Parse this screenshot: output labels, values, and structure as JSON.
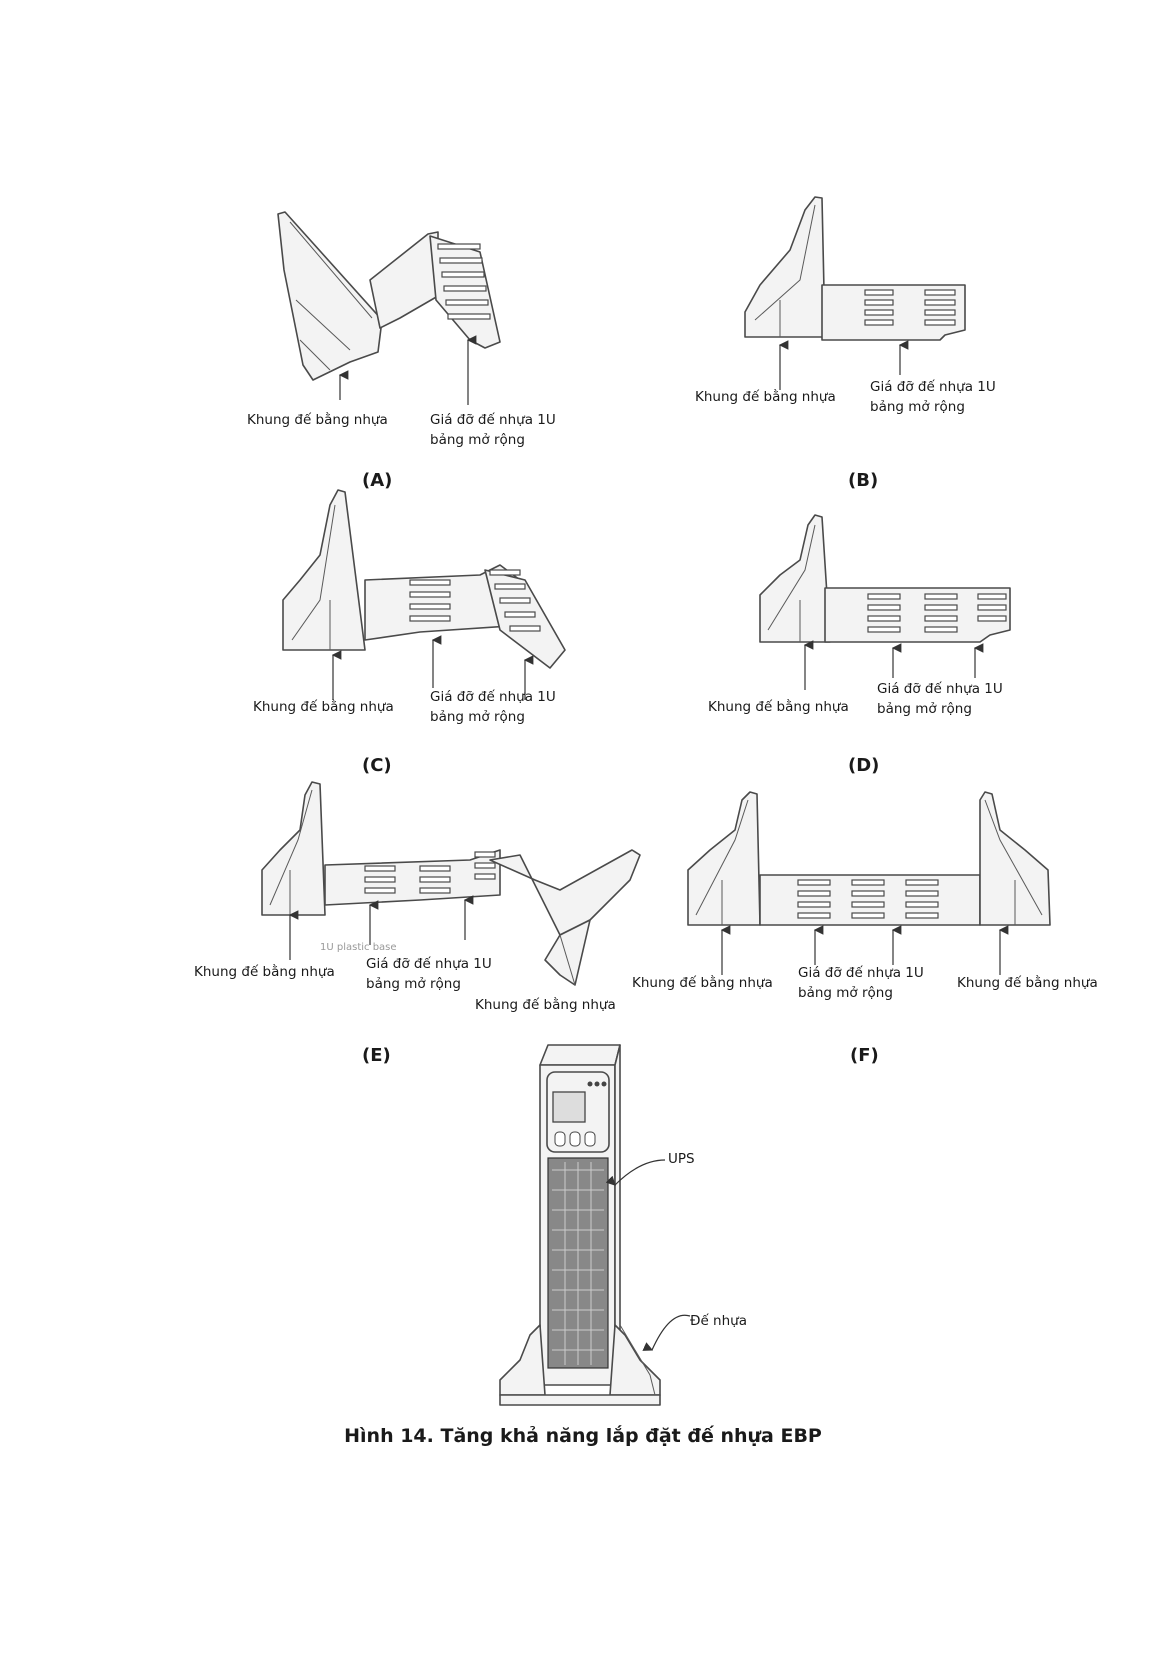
{
  "labels": {
    "plastic_frame": "Khung đế bằng nhựa",
    "bracket_line1": "Giá đỡ đế nhựa 1U",
    "bracket_line2": "bảng mở rộng",
    "ups": "UPS",
    "plastic_base": "Đế nhựa",
    "leftover_text": "1U plastic base"
  },
  "panels": [
    {
      "caption": "(A)"
    },
    {
      "caption": "(B)"
    },
    {
      "caption": "(C)"
    },
    {
      "caption": "(D)"
    },
    {
      "caption": "(E)"
    },
    {
      "caption": "(F)"
    }
  ],
  "figure_title": "Hình 14. Tăng khả năng lắp đặt đế nhựa EBP"
}
